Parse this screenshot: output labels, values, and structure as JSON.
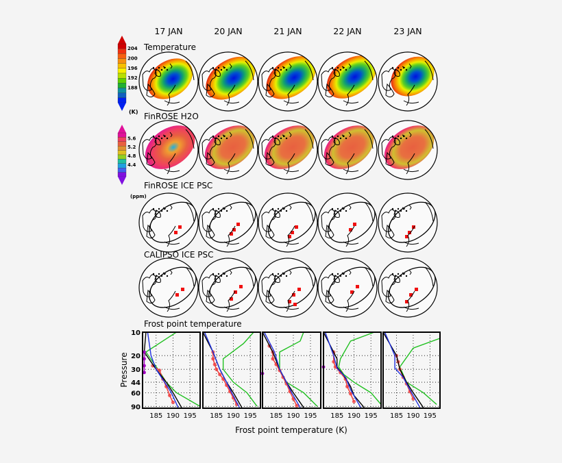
{
  "columns": [
    "17 JAN",
    "20 JAN",
    "21 JAN",
    "22 JAN",
    "23 JAN"
  ],
  "rows": [
    "Temperature",
    "FinROSE H2O",
    "FinROSE ICE PSC",
    "CALIPSO ICE PSC",
    "Frost point temperature"
  ],
  "colorbars": {
    "temperature": {
      "unit": "(K)",
      "labels": [
        "204",
        "200",
        "196",
        "192",
        "188"
      ],
      "colors": [
        "#d00000",
        "#f03010",
        "#f86010",
        "#f89010",
        "#f8c000",
        "#f8f000",
        "#b8e000",
        "#60d000",
        "#20b030",
        "#1090a0",
        "#1060c0",
        "#0020f0"
      ]
    },
    "h2o": {
      "unit": "(ppm)",
      "labels": [
        "5.6",
        "5.2",
        "4.8",
        "4.4"
      ],
      "colors": [
        "#e0109a",
        "#f04060",
        "#e86040",
        "#e09030",
        "#e0c020",
        "#90d020",
        "#20c0a0",
        "#20a0e0",
        "#4060f0",
        "#8010e0"
      ]
    }
  },
  "chart_data": {
    "type": "line",
    "title": "Frost point temperature",
    "xlabel": "Frost point temperature (K)",
    "ylabel": "Pressure",
    "xlim": [
      181,
      198
    ],
    "xticks": [
      "185",
      "190",
      "195"
    ],
    "yticks": [
      "10",
      "20",
      "30",
      "44",
      "60",
      "90"
    ],
    "ylim": [
      10,
      95
    ],
    "yscale": "log",
    "grid": true,
    "panels": [
      {
        "date": "17 JAN",
        "black": [
          [
            182,
            10
          ],
          [
            181.5,
            18
          ],
          [
            185,
            30
          ],
          [
            188,
            44
          ],
          [
            190,
            60
          ],
          [
            192.5,
            93
          ]
        ],
        "blue": [
          [
            182.5,
            10
          ],
          [
            183.5,
            20
          ],
          [
            185,
            30
          ],
          [
            187.5,
            44
          ],
          [
            189.5,
            60
          ],
          [
            191.5,
            93
          ]
        ],
        "green": [
          [
            191,
            10
          ],
          [
            182,
            18
          ],
          [
            186,
            32
          ],
          [
            188,
            44
          ],
          [
            191,
            60
          ],
          [
            198,
            90
          ]
        ],
        "red": [
          [
            184,
            27
          ],
          [
            186,
            31
          ],
          [
            187,
            40
          ],
          [
            188,
            50
          ],
          [
            189,
            65
          ],
          [
            190,
            80
          ]
        ],
        "purple": [
          [
            181.5,
            18
          ],
          [
            181.5,
            22
          ],
          [
            181.5,
            27
          ],
          [
            181.5,
            33
          ]
        ]
      },
      {
        "date": "20 JAN",
        "black": [
          [
            181,
            10
          ],
          [
            184,
            18
          ],
          [
            186,
            30
          ],
          [
            188,
            44
          ],
          [
            190,
            60
          ],
          [
            192.5,
            93
          ]
        ],
        "blue": [
          [
            181.5,
            10
          ],
          [
            184,
            18
          ],
          [
            186,
            30
          ],
          [
            188,
            44
          ],
          [
            189.5,
            60
          ],
          [
            191.8,
            93
          ]
        ],
        "green": [
          [
            196,
            10
          ],
          [
            193,
            14
          ],
          [
            187,
            22
          ],
          [
            187,
            30
          ],
          [
            190,
            44
          ],
          [
            194,
            60
          ],
          [
            197,
            90
          ]
        ],
        "red": [
          [
            184,
            18
          ],
          [
            184,
            22
          ],
          [
            184.5,
            26
          ],
          [
            185,
            30
          ],
          [
            186,
            35
          ],
          [
            187,
            40
          ],
          [
            188,
            48
          ],
          [
            189,
            58
          ],
          [
            190,
            70
          ],
          [
            191,
            85
          ]
        ],
        "purple": []
      },
      {
        "date": "21 JAN",
        "black": [
          [
            181,
            10
          ],
          [
            184,
            18
          ],
          [
            186,
            30
          ],
          [
            188,
            44
          ],
          [
            190,
            60
          ],
          [
            193,
            93
          ]
        ],
        "blue": [
          [
            181.5,
            10
          ],
          [
            184.5,
            18
          ],
          [
            186,
            30
          ],
          [
            188,
            44
          ],
          [
            189.5,
            60
          ],
          [
            192,
            93
          ]
        ],
        "green": [
          [
            193,
            10
          ],
          [
            192,
            13
          ],
          [
            186,
            18
          ],
          [
            186,
            30
          ],
          [
            188,
            44
          ],
          [
            193,
            60
          ],
          [
            197,
            90
          ]
        ],
        "red": [
          [
            183,
            15
          ],
          [
            184,
            18
          ],
          [
            184,
            22
          ],
          [
            185,
            26
          ],
          [
            186,
            31
          ],
          [
            187,
            38
          ],
          [
            188,
            46
          ],
          [
            189,
            58
          ],
          [
            190,
            72
          ],
          [
            191,
            88
          ]
        ],
        "purple": [
          [
            181,
            34
          ]
        ]
      },
      {
        "date": "22 JAN",
        "black": [
          [
            181,
            10
          ],
          [
            185,
            22
          ],
          [
            185,
            28
          ],
          [
            187,
            36
          ],
          [
            189,
            50
          ],
          [
            190,
            65
          ],
          [
            193,
            93
          ]
        ],
        "blue": [
          [
            181.5,
            10
          ],
          [
            184,
            20
          ],
          [
            185,
            29
          ],
          [
            187.5,
            38
          ],
          [
            189,
            55
          ],
          [
            192,
            93
          ]
        ],
        "green": [
          [
            196,
            10
          ],
          [
            189,
            13
          ],
          [
            186,
            22
          ],
          [
            185.5,
            28
          ],
          [
            187,
            35
          ],
          [
            190,
            44
          ],
          [
            195,
            60
          ],
          [
            198,
            85
          ]
        ],
        "red": [
          [
            184,
            18
          ],
          [
            184,
            24
          ],
          [
            184.5,
            28
          ],
          [
            186,
            33
          ],
          [
            187.5,
            40
          ],
          [
            188,
            50
          ],
          [
            189,
            62
          ],
          [
            190,
            78
          ]
        ],
        "purple": [
          [
            181,
            28
          ]
        ]
      },
      {
        "date": "23 JAN",
        "black": [
          [
            181,
            10
          ],
          [
            185,
            20
          ],
          [
            186,
            30
          ],
          [
            188,
            44
          ],
          [
            190,
            60
          ],
          [
            193,
            93
          ]
        ],
        "blue": [
          [
            181.5,
            10
          ],
          [
            184.5,
            20
          ],
          [
            184.5,
            29
          ],
          [
            187,
            38
          ],
          [
            189,
            55
          ],
          [
            192,
            93
          ]
        ],
        "green": [
          [
            198,
            12
          ],
          [
            190,
            16
          ],
          [
            186,
            28
          ],
          [
            188,
            44
          ],
          [
            193,
            60
          ],
          [
            197,
            85
          ]
        ],
        "red": [
          [
            185,
            20
          ],
          [
            185.5,
            24
          ],
          [
            186,
            30
          ],
          [
            187,
            38
          ],
          [
            188,
            46
          ],
          [
            189,
            58
          ],
          [
            190,
            72
          ]
        ],
        "purple": []
      }
    ]
  },
  "legend_colors": {
    "black": "#000000",
    "blue": "#2030e0",
    "green": "#20c020",
    "red": "#f04040",
    "purple": "#a000c0"
  }
}
